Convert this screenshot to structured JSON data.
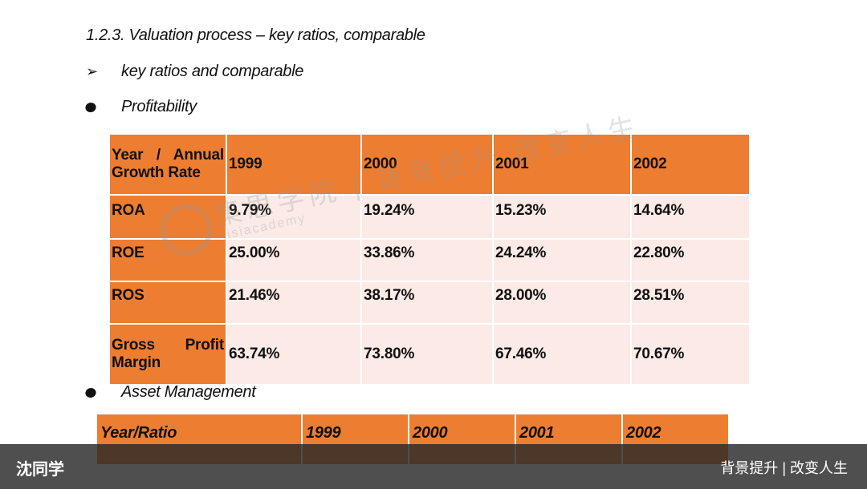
{
  "heading": "1.2.3.   Valuation process – key ratios, comparable",
  "bullets": {
    "arrow_glyph": "➢",
    "key_ratios": "key ratios and comparable",
    "profitability": "Profitability",
    "asset_management": "Asset Management"
  },
  "profitability_table": {
    "header_line1": "Year / Annual",
    "header_line2": "Growth Rate",
    "years": [
      "1999",
      "2000",
      "2001",
      "2002"
    ],
    "rows": [
      {
        "label": "ROA",
        "values": [
          "9.79%",
          "19.24%",
          "15.23%",
          "14.64%"
        ]
      },
      {
        "label": "ROE",
        "values": [
          "25.00%",
          "33.86%",
          "24.24%",
          "22.80%"
        ]
      },
      {
        "label": "ROS",
        "values": [
          "21.46%",
          "38.17%",
          "28.00%",
          "28.51%"
        ]
      },
      {
        "label_line1": "Gross Profit",
        "label_line2": "Margin",
        "values": [
          "63.74%",
          "73.80%",
          "67.46%",
          "70.67%"
        ]
      }
    ]
  },
  "asset_table": {
    "header": "Year/Ratio",
    "years": [
      "1999",
      "2000",
      "2001",
      "2002"
    ]
  },
  "watermark": {
    "text": "集思学院 | 背景提升 改变人生",
    "subtext": "jisiacademy"
  },
  "footer": {
    "left": "沈同学",
    "right": "背景提升 | 改变人生"
  }
}
